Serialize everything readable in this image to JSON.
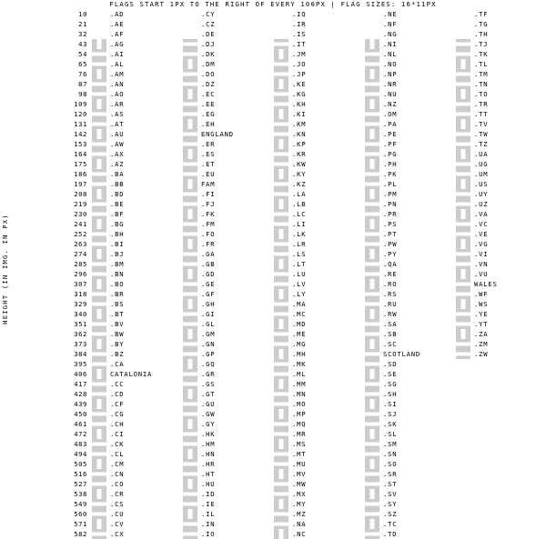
{
  "header": "FLAGS START 1PX TO THE RIGHT OF EVERY 100PX | FLAG SIZES: 16*11PX",
  "y_axis_label": "HEIGHT (IN IMG. IN PX)",
  "ticks": [
    "10",
    "21",
    "32",
    "43",
    "54",
    "65",
    "76",
    "87",
    "98",
    "109",
    "120",
    "131",
    "142",
    "153",
    "164",
    "175",
    "186",
    "197",
    "208",
    "219",
    "230",
    "241",
    "252",
    "263",
    "274",
    "285",
    "296",
    "307",
    "318",
    "329",
    "340",
    "351",
    "362",
    "373",
    "384",
    "395",
    "406",
    "417",
    "428",
    "439",
    "450",
    "461",
    "472",
    "483",
    "494",
    "505",
    "516",
    "527",
    "538",
    "549",
    "560",
    "571",
    "582"
  ],
  "columns": [
    [
      ".AD",
      ".AE",
      ".AF",
      ".AG",
      ".AI",
      ".AL",
      ".AM",
      ".AN",
      ".AO",
      ".AR",
      ".AS",
      ".AT",
      ".AU",
      ".AW",
      ".AX",
      ".AZ",
      ".BA",
      ".BB",
      ".BD",
      ".BE",
      ".BF",
      ".BG",
      ".BH",
      ".BI",
      ".BJ",
      ".BM",
      ".BN",
      ".BO",
      ".BR",
      ".BS",
      ".BT",
      ".BV",
      ".BW",
      ".BY",
      ".BZ",
      ".CA",
      "CATALONIA",
      ".CC",
      ".CD",
      ".CF",
      ".CG",
      ".CH",
      ".CI",
      ".CK",
      ".CL",
      ".CM",
      ".CN",
      ".CO",
      ".CR",
      ".CS",
      ".CU",
      ".CV",
      ".CX"
    ],
    [
      ".CY",
      ".CZ",
      ".DE",
      ".DJ",
      ".DK",
      ".DM",
      ".DO",
      ".DZ",
      ".EC",
      ".EE",
      ".EG",
      ".EH",
      "ENGLAND",
      ".ER",
      ".ES",
      ".ET",
      ".EU",
      "FAM",
      ".FI",
      ".FJ",
      ".FK",
      ".FM",
      ".FO",
      ".FR",
      ".GA",
      ".GB",
      ".GD",
      ".GE",
      ".GF",
      ".GH",
      ".GI",
      ".GL",
      ".GM",
      ".GN",
      ".GP",
      ".GQ",
      ".GR",
      ".GS",
      ".GT",
      ".GU",
      ".GW",
      ".GY",
      ".HK",
      ".HM",
      ".HN",
      ".HR",
      ".HT",
      ".HU",
      ".ID",
      ".IE",
      ".IL",
      ".IN",
      ".IO"
    ],
    [
      ".IQ",
      ".IR",
      ".IS",
      ".IT",
      ".JM",
      ".JO",
      ".JP",
      ".KE",
      ".KG",
      ".KH",
      ".KI",
      ".KM",
      ".KN",
      ".KP",
      ".KR",
      ".KW",
      ".KY",
      ".KZ",
      ".LA",
      ".LB",
      ".LC",
      ".LI",
      ".LK",
      ".LR",
      ".LS",
      ".LT",
      ".LU",
      ".LV",
      ".LY",
      ".MA",
      ".MC",
      ".MD",
      ".ME",
      ".MG",
      ".MH",
      ".MK",
      ".ML",
      ".MM",
      ".MN",
      ".MO",
      ".MP",
      ".MQ",
      ".MR",
      ".MS",
      ".MT",
      ".MU",
      ".MV",
      ".MW",
      ".MX",
      ".MY",
      ".MZ",
      ".NA",
      ".NC"
    ],
    [
      ".NE",
      ".NF",
      ".NG",
      ".NI",
      ".NL",
      ".NO",
      ".NP",
      ".NR",
      ".NU",
      ".NZ",
      ".OM",
      ".PA",
      ".PE",
      ".PF",
      ".PG",
      ".PH",
      ".PK",
      ".PL",
      ".PM",
      ".PN",
      ".PR",
      ".PS",
      ".PT",
      ".PW",
      ".PY",
      ".QA",
      ".RE",
      ".RO",
      ".RS",
      ".RU",
      ".RW",
      ".SA",
      ".SB",
      ".SC",
      "SCOTLAND",
      ".SD",
      ".SE",
      ".SG",
      ".SH",
      ".SI",
      ".SJ",
      ".SK",
      ".SL",
      ".SM",
      ".SN",
      ".SO",
      ".SR",
      ".ST",
      ".SV",
      ".SY",
      ".SZ",
      ".TC",
      ".TD"
    ],
    [
      ".TF",
      ".TG",
      ".TH",
      ".TJ",
      ".TK",
      ".TL",
      ".TM",
      ".TN",
      ".TO",
      ".TR",
      ".TT",
      ".TV",
      ".TW",
      ".TZ",
      ".UA",
      ".UG",
      ".UM",
      ".US",
      ".UY",
      ".UZ",
      ".VA",
      ".VC",
      ".VE",
      ".VG",
      ".VI",
      ".VN",
      ".VU",
      "WALES",
      ".WF",
      ".WS",
      ".YE",
      ".YT",
      ".ZA",
      ".ZM",
      ".ZW"
    ]
  ],
  "flag_colors": [
    [
      "#0038a8",
      "#ff0000",
      "#0038a8"
    ],
    [
      "#00732f",
      "#ffffff",
      "#000000"
    ],
    [
      "#000000",
      "#d32011",
      "#007a36"
    ],
    [
      "#ce1126",
      "#000000",
      "#fcd116"
    ],
    [
      "#012169",
      "#c8102e",
      "#ffffff"
    ],
    [
      "#e41e20",
      "#000000",
      "#e41e20"
    ],
    [
      "#d90012",
      "#0033a0",
      "#f2a800"
    ],
    [
      "#ffffff",
      "#21468b",
      "#ae1c28"
    ],
    [
      "#cc092f",
      "#000000",
      "#ffcb00"
    ],
    [
      "#74acdf",
      "#ffffff",
      "#74acdf"
    ],
    [
      "#002868",
      "#ffffff",
      "#bf0a30"
    ],
    [
      "#ed2939",
      "#ffffff",
      "#ed2939"
    ],
    [
      "#00247d",
      "#cf142b",
      "#ffffff"
    ],
    [
      "#418fde",
      "#ffd100",
      "#418fde"
    ],
    [
      "#0053a5",
      "#ffce00",
      "#d21034"
    ],
    [
      "#00b5e2",
      "#ef3340",
      "#509e2f"
    ],
    [
      "#002395",
      "#fecb00",
      "#ffffff"
    ],
    [
      "#00267f",
      "#ffc726",
      "#00267f"
    ],
    [
      "#006a4e",
      "#f42a41",
      "#006a4e"
    ],
    [
      "#000000",
      "#fdda24",
      "#ef3340"
    ],
    [
      "#ef2b2d",
      "#fcd116",
      "#009e49"
    ],
    [
      "#ffffff",
      "#00966e",
      "#d62612"
    ],
    [
      "#ffffff",
      "#ce1126",
      "#ce1126"
    ],
    [
      "#ce1126",
      "#ffffff",
      "#1eb53a"
    ],
    [
      "#008751",
      "#fcd116",
      "#e8112d"
    ],
    [
      "#c8102e",
      "#012169",
      "#c8102e"
    ],
    [
      "#f7e017",
      "#ffffff",
      "#000000"
    ],
    [
      "#d52b1e",
      "#f9e300",
      "#007934"
    ],
    [
      "#009c3b",
      "#ffdf00",
      "#002776"
    ],
    [
      "#00778b",
      "#ffc72c",
      "#00778b"
    ],
    [
      "#ffd520",
      "#ff4e12",
      "#ffd520"
    ],
    [
      "#ba0c2f",
      "#ffffff",
      "#00205b"
    ],
    [
      "#75aadb",
      "#000000",
      "#75aadb"
    ],
    [
      "#c8313e",
      "#ffffff",
      "#4aa657"
    ],
    [
      "#003f87",
      "#ce1126",
      "#003f87"
    ],
    [
      "#ff0000",
      "#ffffff",
      "#ff0000"
    ],
    [
      "#fcdd09",
      "#da121a",
      "#fcdd09"
    ],
    [
      "#008000",
      "#ffe000",
      "#008000"
    ],
    [
      "#007fff",
      "#f7d618",
      "#ce1021"
    ],
    [
      "#003082",
      "#289728",
      "#ffce00"
    ],
    [
      "#009543",
      "#fbde4a",
      "#dc241f"
    ],
    [
      "#ff0000",
      "#ffffff",
      "#ff0000"
    ],
    [
      "#f77f00",
      "#ffffff",
      "#009e60"
    ],
    [
      "#012169",
      "#c8102e",
      "#ffffff"
    ],
    [
      "#0039a6",
      "#ffffff",
      "#d52b1e"
    ],
    [
      "#007a5e",
      "#ce1126",
      "#fcd116"
    ],
    [
      "#de2910",
      "#ffde00",
      "#de2910"
    ],
    [
      "#fcd116",
      "#003893",
      "#ce1126"
    ],
    [
      "#002b7f",
      "#ffffff",
      "#ce1126"
    ],
    [
      "#0c4076",
      "#ffffff",
      "#c6363c"
    ],
    [
      "#002a8f",
      "#ffffff",
      "#cf142b"
    ],
    [
      "#003893",
      "#ffffff",
      "#cf2027"
    ],
    [
      "#0021ad",
      "#1c8a42",
      "#ffc639"
    ],
    [
      "#ffffff",
      "#d57800",
      "#ffffff"
    ],
    [
      "#ffffff",
      "#d7141a",
      "#11457e"
    ],
    [
      "#000000",
      "#dd0000",
      "#ffce00"
    ],
    [
      "#6ab2e7",
      "#ffffff",
      "#12ad2b"
    ],
    [
      "#c60c30",
      "#ffffff",
      "#c60c30"
    ],
    [
      "#006b3f",
      "#fcd116",
      "#d41c30"
    ],
    [
      "#002d62",
      "#ffffff",
      "#ce1126"
    ],
    [
      "#006233",
      "#ffffff",
      "#d21034"
    ],
    [
      "#ffdd00",
      "#034ea2",
      "#ed1c24"
    ],
    [
      "#0072ce",
      "#000000",
      "#ffffff"
    ],
    [
      "#ce1126",
      "#ffffff",
      "#000000"
    ],
    [
      "#000000",
      "#ffffff",
      "#007a3d"
    ],
    [
      "#ffffff",
      "#ce1124",
      "#ffffff"
    ],
    [
      "#12ad2b",
      "#ea0437",
      "#4189dd"
    ],
    [
      "#aa151b",
      "#f1bf00",
      "#aa151b"
    ],
    [
      "#078930",
      "#fcdd09",
      "#da121a"
    ],
    [
      "#003399",
      "#ffcc00",
      "#003399"
    ],
    [
      "#3a75c4",
      "#ffffff",
      "#3a75c4"
    ],
    [
      "#ffffff",
      "#003580",
      "#ffffff"
    ],
    [
      "#68bfe5",
      "#ce1126",
      "#68bfe5"
    ],
    [
      "#012169",
      "#c8102e",
      "#ffffff"
    ],
    [
      "#009edb",
      "#ffffff",
      "#009edb"
    ],
    [
      "#ffffff",
      "#ed2939",
      "#003897"
    ],
    [
      "#002395",
      "#ffffff",
      "#ed2939"
    ],
    [
      "#009e60",
      "#fcd116",
      "#3a75c4"
    ],
    [
      "#012169",
      "#ffffff",
      "#c8102e"
    ],
    [
      "#ce1126",
      "#007a5e",
      "#fcd116"
    ],
    [
      "#ffffff",
      "#ff0000",
      "#ffffff"
    ],
    [
      "#002395",
      "#ffffff",
      "#ed2939"
    ],
    [
      "#ce1126",
      "#fcd116",
      "#006b3f"
    ],
    [
      "#ffffff",
      "#da000c",
      "#ffffff"
    ],
    [
      "#ffffff",
      "#d00c33",
      "#ffffff"
    ],
    [
      "#ce1126",
      "#0c1c8c",
      "#3a7728"
    ],
    [
      "#ce1126",
      "#fcd116",
      "#009460"
    ],
    [
      "#002395",
      "#ffffff",
      "#ed2939"
    ],
    [
      "#3e9a00",
      "#ffffff",
      "#e32118"
    ],
    [
      "#0d5eaf",
      "#ffffff",
      "#0d5eaf"
    ],
    [
      "#012169",
      "#c8102e",
      "#ffffff"
    ],
    [
      "#4997d0",
      "#ffffff",
      "#4997d0"
    ],
    [
      "#012169",
      "#c8102e",
      "#cf142b"
    ],
    [
      "#ce1126",
      "#fcd116",
      "#009e49"
    ],
    [
      "#009e49",
      "#fcd116",
      "#ce1126"
    ],
    [
      "#de2910",
      "#ffffff",
      "#de2910"
    ],
    [
      "#00247d",
      "#ffffff",
      "#cf142b"
    ],
    [
      "#0073cf",
      "#ffffff",
      "#0073cf"
    ],
    [
      "#ff0000",
      "#ffffff",
      "#171796"
    ],
    [
      "#00209f",
      "#d21034",
      "#00209f"
    ],
    [
      "#ce2939",
      "#ffffff",
      "#477050"
    ],
    [
      "#ce1126",
      "#ffffff",
      "#ffffff"
    ],
    [
      "#169b62",
      "#ffffff",
      "#ff883e"
    ],
    [
      "#ffffff",
      "#0038b8",
      "#ffffff"
    ],
    [
      "#ff9933",
      "#ffffff",
      "#138808"
    ],
    [
      "#012169",
      "#ffffff",
      "#0033a0"
    ],
    [
      "#ce1126",
      "#ffffff",
      "#000000"
    ],
    [
      "#239f40",
      "#ffffff",
      "#da0000"
    ],
    [
      "#02529c",
      "#dc1e35",
      "#02529c"
    ],
    [
      "#009246",
      "#ffffff",
      "#ce2b37"
    ],
    [
      "#009b3a",
      "#fed100",
      "#000000"
    ],
    [
      "#000000",
      "#ffffff",
      "#007a3d"
    ],
    [
      "#ffffff",
      "#bc002d",
      "#ffffff"
    ],
    [
      "#000000",
      "#bb0000",
      "#006600"
    ],
    [
      "#e8112d",
      "#ffef00",
      "#e8112d"
    ],
    [
      "#032ea1",
      "#e00025",
      "#032ea1"
    ],
    [
      "#c8102e",
      "#ffd100",
      "#003f87"
    ],
    [
      "#ffc61e",
      "#3a75c4",
      "#3d8e33"
    ],
    [
      "#009e49",
      "#fcd116",
      "#ce1126"
    ],
    [
      "#024fa2",
      "#ed1c27",
      "#024fa2"
    ],
    [
      "#ffffff",
      "#c60c30",
      "#003478"
    ],
    [
      "#007a3d",
      "#ffffff",
      "#ce1126"
    ],
    [
      "#012169",
      "#c8102e",
      "#ffffff"
    ],
    [
      "#00afca",
      "#fec50c",
      "#00afca"
    ],
    [
      "#ce1126",
      "#002868",
      "#ce1126"
    ],
    [
      "#ed1c24",
      "#ffffff",
      "#00a651"
    ],
    [
      "#65cfff",
      "#ffce00",
      "#000000"
    ],
    [
      "#002b7f",
      "#ce1126",
      "#002b7f"
    ],
    [
      "#ffb700",
      "#8d153a",
      "#eb7400"
    ],
    [
      "#bf0a30",
      "#ffffff",
      "#002868"
    ],
    [
      "#00209f",
      "#ffffff",
      "#009a44"
    ],
    [
      "#fdb913",
      "#006a44",
      "#c1272d"
    ],
    [
      "#ed2939",
      "#ffffff",
      "#00a1de"
    ],
    [
      "#9e3039",
      "#ffffff",
      "#9e3039"
    ],
    [
      "#e70013",
      "#000000",
      "#239e46"
    ],
    [
      "#c1272d",
      "#006233",
      "#c1272d"
    ],
    [
      "#ce1126",
      "#ffffff",
      "#ffffff"
    ],
    [
      "#0046ae",
      "#ffd200",
      "#cc092f"
    ],
    [
      "#c40308",
      "#d4af3a",
      "#c40308"
    ],
    [
      "#ffffff",
      "#fc3d32",
      "#007e3a"
    ],
    [
      "#003893",
      "#ffffff",
      "#dd7500"
    ],
    [
      "#d20000",
      "#ffe600",
      "#d20000"
    ],
    [
      "#14b53a",
      "#fcd116",
      "#ce1126"
    ],
    [
      "#fecb00",
      "#34b233",
      "#ea2839"
    ],
    [
      "#c4272f",
      "#015197",
      "#c4272f"
    ],
    [
      "#00785e",
      "#ffffff",
      "#00785e"
    ],
    [
      "#0071bc",
      "#ffffff",
      "#0071bc"
    ],
    [
      "#002395",
      "#ffffff",
      "#ed2939"
    ],
    [
      "#006233",
      "#ffc400",
      "#d01c1f"
    ],
    [
      "#012169",
      "#c8102e",
      "#0072c6"
    ],
    [
      "#ffffff",
      "#cf142b",
      "#cf142b"
    ],
    [
      "#ea2839",
      "#1a206d",
      "#00a551"
    ],
    [
      "#d21034",
      "#007e3a",
      "#d21034"
    ],
    [
      "#000000",
      "#ce1126",
      "#339e35"
    ],
    [
      "#006847",
      "#ffffff",
      "#ce1126"
    ],
    [
      "#010066",
      "#cc0001",
      "#ffffff"
    ],
    [
      "#007168",
      "#fce100",
      "#d21034"
    ],
    [
      "#003580",
      "#d21034",
      "#009543"
    ],
    [
      "#002395",
      "#ffffff",
      "#ed2939"
    ],
    [
      "#e05206",
      "#ffffff",
      "#0db02b"
    ],
    [
      "#007934",
      "#ffffff",
      "#007934"
    ],
    [
      "#008751",
      "#ffffff",
      "#008751"
    ],
    [
      "#0067c6",
      "#ffffff",
      "#0067c6"
    ],
    [
      "#ae1c28",
      "#ffffff",
      "#21468b"
    ],
    [
      "#ba0c2f",
      "#ffffff",
      "#00205b"
    ],
    [
      "#dc143c",
      "#ffffff",
      "#003893"
    ],
    [
      "#002b7f",
      "#ffc61e",
      "#002b7f"
    ],
    [
      "#fedd00",
      "#012169",
      "#c8102e"
    ],
    [
      "#00247d",
      "#cc142b",
      "#ffffff"
    ],
    [
      "#ffffff",
      "#db161b",
      "#008000"
    ],
    [
      "#ffffff",
      "#da121a",
      "#072357"
    ],
    [
      "#d91023",
      "#ffffff",
      "#d91023"
    ],
    [
      "#ed2939",
      "#ffffff",
      "#ed2939"
    ],
    [
      "#000000",
      "#ce1126",
      "#fcd116"
    ],
    [
      "#0038a8",
      "#ce1126",
      "#ffffff"
    ],
    [
      "#01411c",
      "#ffffff",
      "#01411c"
    ],
    [
      "#ffffff",
      "#ffffff",
      "#dc143c"
    ],
    [
      "#002395",
      "#ffffff",
      "#ed2939"
    ],
    [
      "#012169",
      "#c8102e",
      "#00247d"
    ],
    [
      "#ed0000",
      "#ffffff",
      "#002a8f"
    ],
    [
      "#000000",
      "#ffffff",
      "#009736"
    ],
    [
      "#006600",
      "#ffff00",
      "#ff0000"
    ],
    [
      "#4aadd6",
      "#ffde00",
      "#4aadd6"
    ],
    [
      "#d52b1e",
      "#ffffff",
      "#0038a8"
    ],
    [
      "#8d1b3d",
      "#ffffff",
      "#8d1b3d"
    ],
    [
      "#002395",
      "#ffffff",
      "#ed2939"
    ],
    [
      "#002b7f",
      "#fcd116",
      "#ce1126"
    ],
    [
      "#c6363c",
      "#0c4076",
      "#ffffff"
    ],
    [
      "#ffffff",
      "#0039a6",
      "#d52b1e"
    ],
    [
      "#00a1de",
      "#fad201",
      "#20603d"
    ],
    [
      "#006c35",
      "#ffffff",
      "#006c35"
    ],
    [
      "#0051ba",
      "#fcd116",
      "#215b33"
    ],
    [
      "#003f87",
      "#fcd856",
      "#007a3d"
    ],
    [
      "#0065bd",
      "#ffffff",
      "#0065bd"
    ],
    [
      "#d21034",
      "#ffffff",
      "#007229"
    ],
    [
      "#006aa7",
      "#fecc00",
      "#006aa7"
    ],
    [
      "#ed2939",
      "#ffffff",
      "#ffffff"
    ],
    [
      "#012169",
      "#c8102e",
      "#ffffff"
    ],
    [
      "#ffffff",
      "#0000ff",
      "#ff0000"
    ],
    [
      "#ba0c2f",
      "#ffffff",
      "#00205b"
    ],
    [
      "#ffffff",
      "#0b4ea2",
      "#ee1c25"
    ],
    [
      "#1eb53a",
      "#ffffff",
      "#0072c6"
    ],
    [
      "#19b6ef",
      "#ffffff",
      "#5eb6e4"
    ],
    [
      "#00853f",
      "#fdef42",
      "#e31b23"
    ],
    [
      "#4189dd",
      "#ffffff",
      "#4189dd"
    ],
    [
      "#377e3f",
      "#ffffff",
      "#b40a2d"
    ],
    [
      "#12ad2b",
      "#ffce00",
      "#d21034"
    ],
    [
      "#0047ab",
      "#ffffff",
      "#0047ab"
    ],
    [
      "#ce1126",
      "#ffffff",
      "#000000"
    ],
    [
      "#3e5eb9",
      "#b10c0c",
      "#3e5eb9"
    ],
    [
      "#012169",
      "#c8102e",
      "#00247d"
    ],
    [
      "#002664",
      "#fecb00",
      "#c60c30"
    ],
    [
      "#002395",
      "#ffffff",
      "#ed2939"
    ],
    [
      "#006a4e",
      "#ffce00",
      "#d21034"
    ],
    [
      "#a51931",
      "#2d2a4a",
      "#a51931"
    ],
    [
      "#cc0000",
      "#f8c300",
      "#006600"
    ],
    [
      "#00247d",
      "#ffd100",
      "#00247d"
    ],
    [
      "#dc241f",
      "#ffc726",
      "#000000"
    ],
    [
      "#00843d",
      "#ffffff",
      "#d22630"
    ],
    [
      "#e70013",
      "#ffffff",
      "#e70013"
    ],
    [
      "#c10000",
      "#ffffff",
      "#c10000"
    ],
    [
      "#e30a17",
      "#ffffff",
      "#e30a17"
    ],
    [
      "#ce1126",
      "#000000",
      "#ce1126"
    ],
    [
      "#5b97b1",
      "#ffffff",
      "#c8102e"
    ],
    [
      "#fe0000",
      "#000095",
      "#fe0000"
    ],
    [
      "#1eb53a",
      "#fcd116",
      "#00a3dd"
    ],
    [
      "#0057b7",
      "#0057b7",
      "#ffd700"
    ],
    [
      "#000000",
      "#fcdc04",
      "#d90000"
    ],
    [
      "#b22234",
      "#ffffff",
      "#3c3b6e"
    ],
    [
      "#b22234",
      "#ffffff",
      "#3c3b6e"
    ],
    [
      "#ffffff",
      "#0038a8",
      "#ffffff"
    ],
    [
      "#1eb53a",
      "#ffffff",
      "#0099b5"
    ],
    [
      "#ffe000",
      "#ffffff",
      "#ffffff"
    ],
    [
      "#002b7f",
      "#fcd116",
      "#009e60"
    ],
    [
      "#ffcc00",
      "#00247d",
      "#cf142b"
    ],
    [
      "#012169",
      "#c8102e",
      "#ffffff"
    ],
    [
      "#b22234",
      "#ffffff",
      "#3c3b6e"
    ],
    [
      "#da251d",
      "#ffff00",
      "#da251d"
    ],
    [
      "#d21034",
      "#000000",
      "#009543"
    ],
    [
      "#ffffff",
      "#00ab39",
      "#c8102e"
    ],
    [
      "#002395",
      "#ffffff",
      "#ed2939"
    ],
    [
      "#ce1126",
      "#002b7f",
      "#ce1126"
    ],
    [
      "#ce1126",
      "#ffffff",
      "#000000"
    ],
    [
      "#ffffff",
      "#002395",
      "#ed2939"
    ],
    [
      "#007a4d",
      "#ffb612",
      "#de3831"
    ],
    [
      "#198a00",
      "#ef7d00",
      "#198a00"
    ],
    [
      "#319208",
      "#d40000",
      "#ffd200"
    ]
  ]
}
